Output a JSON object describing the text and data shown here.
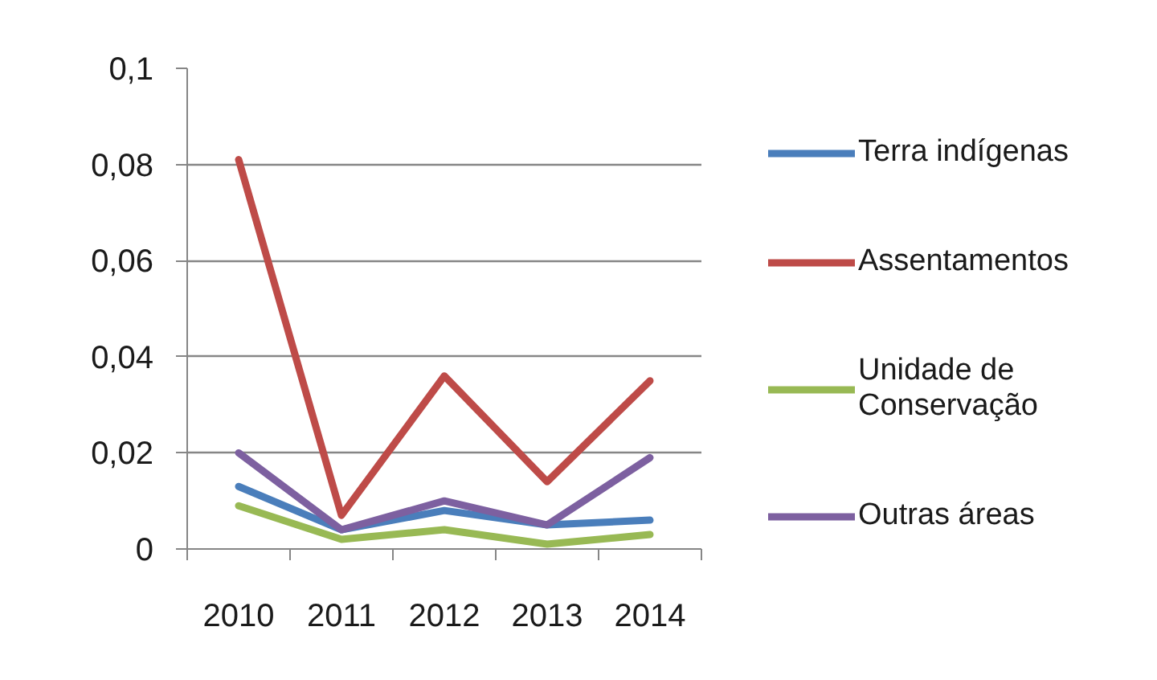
{
  "chart_data": {
    "type": "line",
    "categories": [
      "2010",
      "2011",
      "2012",
      "2013",
      "2014"
    ],
    "series": [
      {
        "name": "Terra indígenas",
        "color": "#4a7ebb",
        "values": [
          0.013,
          0.004,
          0.008,
          0.005,
          0.006
        ]
      },
      {
        "name": "Assentamentos",
        "color": "#be4b48",
        "values": [
          0.081,
          0.007,
          0.036,
          0.014,
          0.035
        ]
      },
      {
        "name": "Unidade de Conservação",
        "color": "#98b954",
        "values": [
          0.009,
          0.002,
          0.004,
          0.001,
          0.003
        ]
      },
      {
        "name": "Outras áreas",
        "color": "#7d60a0",
        "values": [
          0.02,
          0.004,
          0.01,
          0.005,
          0.019
        ]
      }
    ],
    "ylim": [
      0,
      0.1
    ],
    "yticks": [
      0,
      {
        "value": 0.02,
        "label": "0,02"
      },
      {
        "value": 0.04,
        "label": "0,04"
      },
      {
        "value": 0.06,
        "label": "0,06"
      },
      {
        "value": 0.08,
        "label": "0,08"
      },
      {
        "value": 0.1,
        "label": "0,1"
      }
    ],
    "grid": "y",
    "legend": "right",
    "line_style": "solid"
  }
}
